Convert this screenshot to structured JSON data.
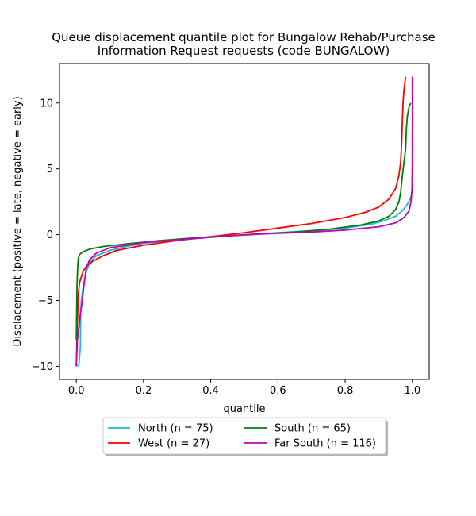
{
  "chart_data": {
    "type": "line",
    "title_lines": [
      "Queue displacement quantile plot for Bungalow Rehab/Purchase",
      "Information Request  requests (code BUNGALOW)"
    ],
    "xlabel": "quantile",
    "ylabel": "Displacement (positive = late, negative = early)",
    "xlim": [
      -0.05,
      1.05
    ],
    "ylim": [
      -11,
      13
    ],
    "xticks": [
      0.0,
      0.2,
      0.4,
      0.6,
      0.8,
      1.0
    ],
    "xtick_labels": [
      "0.0",
      "0.2",
      "0.4",
      "0.6",
      "0.8",
      "1.0"
    ],
    "yticks": [
      -10,
      -5,
      0,
      5,
      10
    ],
    "ytick_labels": [
      "−10",
      "−5",
      "0",
      "5",
      "10"
    ],
    "grid": false,
    "legend_position": "below-center",
    "legend_columns": 2,
    "series": [
      {
        "name": "North (n = 75)",
        "color": "#17becf",
        "points": [
          [
            0.005,
            -10
          ],
          [
            0.008,
            -9.8
          ],
          [
            0.012,
            -8.5
          ],
          [
            0.013,
            -6
          ],
          [
            0.015,
            -5
          ],
          [
            0.02,
            -4
          ],
          [
            0.03,
            -2.8
          ],
          [
            0.04,
            -2.1
          ],
          [
            0.06,
            -1.6
          ],
          [
            0.1,
            -1.2
          ],
          [
            0.15,
            -0.9
          ],
          [
            0.2,
            -0.65
          ],
          [
            0.3,
            -0.4
          ],
          [
            0.4,
            -0.2
          ],
          [
            0.5,
            0
          ],
          [
            0.6,
            0.15
          ],
          [
            0.7,
            0.3
          ],
          [
            0.8,
            0.5
          ],
          [
            0.88,
            0.8
          ],
          [
            0.92,
            1.1
          ],
          [
            0.95,
            1.4
          ],
          [
            0.97,
            1.8
          ],
          [
            0.985,
            2.3
          ],
          [
            0.995,
            2.8
          ],
          [
            1.0,
            3.3
          ]
        ]
      },
      {
        "name": "West (n = 27)",
        "color": "#ff0000",
        "points": [
          [
            0.0,
            -10
          ],
          [
            0.002,
            -8
          ],
          [
            0.004,
            -6
          ],
          [
            0.006,
            -4.5
          ],
          [
            0.01,
            -3.6
          ],
          [
            0.02,
            -2.8
          ],
          [
            0.03,
            -2.4
          ],
          [
            0.05,
            -2.0
          ],
          [
            0.08,
            -1.6
          ],
          [
            0.12,
            -1.2
          ],
          [
            0.2,
            -0.8
          ],
          [
            0.3,
            -0.45
          ],
          [
            0.4,
            -0.15
          ],
          [
            0.5,
            0.15
          ],
          [
            0.6,
            0.5
          ],
          [
            0.7,
            0.85
          ],
          [
            0.8,
            1.3
          ],
          [
            0.86,
            1.7
          ],
          [
            0.9,
            2.1
          ],
          [
            0.93,
            2.7
          ],
          [
            0.95,
            3.5
          ],
          [
            0.96,
            4.5
          ],
          [
            0.965,
            5.5
          ],
          [
            0.968,
            7
          ],
          [
            0.97,
            8.5
          ],
          [
            0.972,
            10
          ],
          [
            0.975,
            11
          ],
          [
            0.98,
            12
          ]
        ]
      },
      {
        "name": "South (n = 65)",
        "color": "#008000",
        "points": [
          [
            0.0,
            -8
          ],
          [
            0.002,
            -4
          ],
          [
            0.004,
            -2.5
          ],
          [
            0.006,
            -1.8
          ],
          [
            0.01,
            -1.5
          ],
          [
            0.02,
            -1.3
          ],
          [
            0.04,
            -1.1
          ],
          [
            0.08,
            -0.9
          ],
          [
            0.15,
            -0.7
          ],
          [
            0.25,
            -0.45
          ],
          [
            0.35,
            -0.25
          ],
          [
            0.45,
            -0.1
          ],
          [
            0.55,
            0.05
          ],
          [
            0.65,
            0.2
          ],
          [
            0.75,
            0.4
          ],
          [
            0.85,
            0.75
          ],
          [
            0.9,
            1.05
          ],
          [
            0.93,
            1.4
          ],
          [
            0.95,
            1.9
          ],
          [
            0.96,
            2.5
          ],
          [
            0.965,
            3.2
          ],
          [
            0.97,
            4.4
          ],
          [
            0.975,
            5.5
          ],
          [
            0.98,
            6.5
          ],
          [
            0.982,
            8
          ],
          [
            0.985,
            9
          ],
          [
            0.99,
            9.7
          ],
          [
            0.995,
            10
          ]
        ]
      },
      {
        "name": "Far South (n = 116)",
        "color": "#bf00bf",
        "points": [
          [
            0.0,
            -10
          ],
          [
            0.003,
            -8
          ],
          [
            0.008,
            -7
          ],
          [
            0.012,
            -6
          ],
          [
            0.018,
            -5
          ],
          [
            0.022,
            -4
          ],
          [
            0.025,
            -3.4
          ],
          [
            0.03,
            -2.5
          ],
          [
            0.04,
            -1.9
          ],
          [
            0.06,
            -1.4
          ],
          [
            0.1,
            -1.0
          ],
          [
            0.2,
            -0.6
          ],
          [
            0.3,
            -0.4
          ],
          [
            0.4,
            -0.2
          ],
          [
            0.5,
            0
          ],
          [
            0.6,
            0.1
          ],
          [
            0.7,
            0.2
          ],
          [
            0.8,
            0.35
          ],
          [
            0.9,
            0.6
          ],
          [
            0.95,
            0.9
          ],
          [
            0.975,
            1.3
          ],
          [
            0.99,
            1.8
          ],
          [
            0.996,
            2.5
          ],
          [
            0.999,
            3.5
          ],
          [
            1.0,
            6
          ],
          [
            1.0,
            12
          ]
        ]
      }
    ]
  }
}
